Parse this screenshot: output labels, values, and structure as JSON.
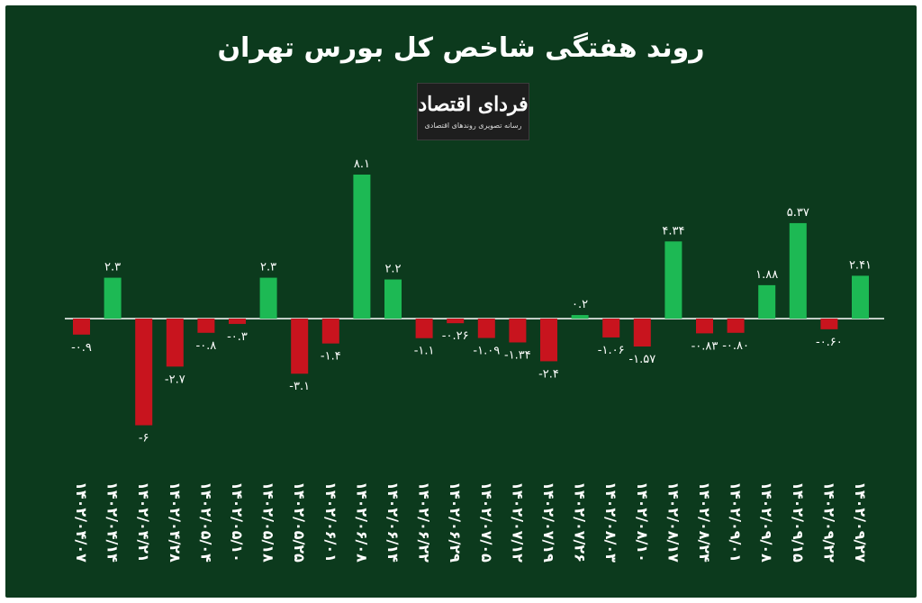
{
  "title": "روند هفتگی شاخص کل بورس تهران",
  "logo": {
    "brand": "فردای اقتصاد",
    "tagline": "رسانه تصویری روندهای اقتصادی"
  },
  "colors": {
    "background": "#0c3a1d",
    "positive": "#1db954",
    "negative": "#c8141e",
    "text": "#ffffff"
  },
  "chart_data": {
    "type": "bar",
    "categories": [
      "۱۴۰۲/۰۴/۰۷",
      "۱۴۰۲/۰۴/۱۴",
      "۱۴۰۲/۰۴/۲۱",
      "۱۴۰۲/۰۴/۲۸",
      "۱۴۰۲/۰۵/۰۴",
      "۱۴۰۲/۰۵/۱۰",
      "۱۴۰۲/۰۵/۱۸",
      "۱۴۰۲/۰۵/۲۵",
      "۱۴۰۲/۰۶/۰۱",
      "۱۴۰۲/۰۶/۰۸",
      "۱۴۰۲/۰۶/۱۴",
      "۱۴۰۲/۰۶/۲۲",
      "۱۴۰۲/۰۶/۲۹",
      "۱۴۰۲/۰۷/۰۵",
      "۱۴۰۲/۰۷/۱۲",
      "۱۴۰۲/۰۷/۱۹",
      "۱۴۰۲/۰۷/۲۶",
      "۱۴۰۲/۰۸/۰۳",
      "۱۴۰۲/۰۸/۱۰",
      "۱۴۰۲/۰۸/۱۷",
      "۱۴۰۲/۰۸/۲۴",
      "۱۴۰۲/۰۹/۰۱",
      "۱۴۰۲/۰۹/۰۸",
      "۱۴۰۲/۰۹/۱۵",
      "۱۴۰۲/۰۹/۲۲",
      "۱۴۰۲/۰۹/۲۷"
    ],
    "values": [
      -0.9,
      2.3,
      -6,
      -2.7,
      -0.8,
      -0.3,
      2.3,
      -3.1,
      -1.4,
      8.1,
      2.2,
      -1.1,
      -0.26,
      -1.09,
      -1.34,
      -2.4,
      0.2,
      -1.06,
      -1.57,
      4.34,
      -0.83,
      -0.8,
      1.88,
      5.37,
      -0.6,
      2.41
    ],
    "value_labels": [
      "-۰.۹",
      "۲.۳",
      "-۶",
      "-۲.۷",
      "-۰.۸",
      "-۰.۳",
      "۲.۳",
      "-۳.۱",
      "-۱.۴",
      "۸.۱",
      "۲.۲",
      "-۱.۱",
      "-۰.۲۶",
      "-۱.۰۹",
      "-۱.۳۴",
      "-۲.۴",
      "۰.۲",
      "-۱.۰۶",
      "-۱.۵۷",
      "۴.۳۴",
      "-۰.۸۳",
      "-۰.۸۰",
      "۱.۸۸",
      "۵.۳۷",
      "-۰.۶۰",
      "۲.۴۱"
    ],
    "ylim": [
      -6,
      8.1
    ],
    "grid": false,
    "legend": "none"
  }
}
